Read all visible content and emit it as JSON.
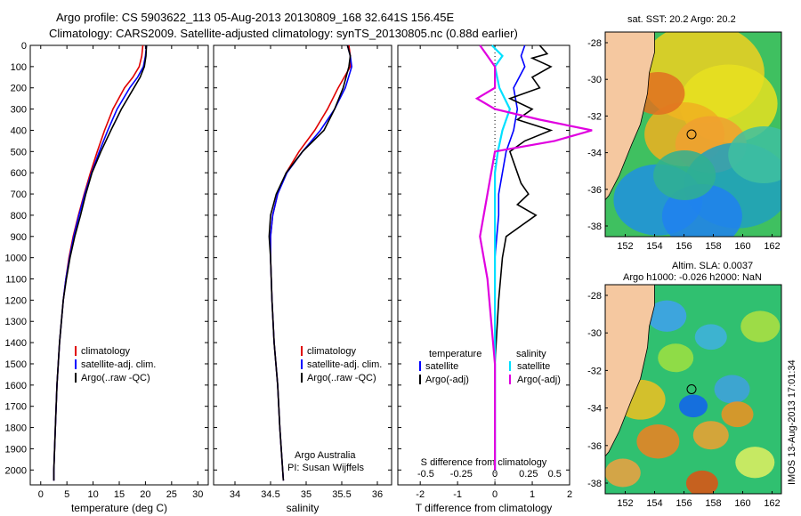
{
  "header": {
    "line1": "Argo profile: CS 5903622_113 05-Aug-2013 20130809_168 32.641S 156.45E",
    "line2": "Climatology: CARS2009. Satellite-adjusted climatology: synTS_20130805.nc (0.88d earlier)"
  },
  "map_top": {
    "title": "sat. SST: 20.2 Argo: 20.2"
  },
  "map_bottom": {
    "title1": "Altim. SLA: 0.0037",
    "title2": "Argo h1000: -0.026 h2000: NaN"
  },
  "side_label": "IMOS 13-Aug-2013 17:01:34",
  "annotations": {
    "argo_australia": "Argo Australia",
    "pi": "PI: Susan Wijffels"
  },
  "colors": {
    "climatology": "#e00000",
    "satellite": "#0000ff",
    "argo": "#000000",
    "sal_satellite": "#00e0ff",
    "sal_argo": "#e000e0",
    "land": "#f5c8a0"
  },
  "chart_data": [
    {
      "type": "line",
      "xlabel": "temperature (deg C)",
      "ylabel": "",
      "xlim": [
        -2,
        32
      ],
      "ylim": [
        2070,
        0
      ],
      "xticks": [
        0,
        5,
        10,
        15,
        20,
        25,
        30
      ],
      "yticks": [
        0,
        100,
        200,
        300,
        400,
        500,
        600,
        700,
        800,
        900,
        1000,
        1100,
        1200,
        1300,
        1400,
        1500,
        1600,
        1700,
        1800,
        1900,
        2000
      ],
      "legend": [
        "climatology",
        "satellite-adj. clim.",
        "Argo(..raw -QC)"
      ],
      "legend_position": "bottom-left",
      "series": [
        {
          "name": "climatology",
          "depth": [
            0,
            50,
            100,
            150,
            200,
            300,
            400,
            500,
            600,
            700,
            800,
            900,
            1000,
            1100,
            1200,
            1400,
            1600,
            1800,
            2000,
            2050
          ],
          "values": [
            19.5,
            19.3,
            18.8,
            17.6,
            16.0,
            13.8,
            12.2,
            10.8,
            9.5,
            8.3,
            7.2,
            6.2,
            5.4,
            4.8,
            4.3,
            3.6,
            3.1,
            2.8,
            2.5,
            2.5
          ]
        },
        {
          "name": "satellite-adj. clim.",
          "depth": [
            0,
            50,
            100,
            150,
            200,
            300,
            400,
            500,
            600,
            700,
            800,
            900,
            1000,
            1100,
            1200,
            1400,
            1600,
            1800,
            2000,
            2050
          ],
          "values": [
            20.2,
            20.0,
            19.6,
            18.5,
            17.0,
            14.6,
            12.8,
            11.2,
            9.7,
            8.4,
            7.3,
            6.3,
            5.5,
            4.8,
            4.3,
            3.6,
            3.1,
            2.8,
            2.5,
            2.5
          ]
        },
        {
          "name": "Argo(..raw -QC)",
          "depth": [
            0,
            50,
            100,
            150,
            200,
            300,
            400,
            500,
            600,
            700,
            800,
            900,
            1000,
            1100,
            1200,
            1400,
            1600,
            1800,
            2000,
            2050
          ],
          "values": [
            20.2,
            20.1,
            19.8,
            19.0,
            17.8,
            15.4,
            13.4,
            11.5,
            9.8,
            8.6,
            7.6,
            6.5,
            5.6,
            4.9,
            4.3,
            3.6,
            3.1,
            2.8,
            2.5,
            2.5
          ]
        }
      ]
    },
    {
      "type": "line",
      "xlabel": "salinity",
      "xlim": [
        33.7,
        36.2
      ],
      "ylim": [
        2070,
        0
      ],
      "xticks": [
        34,
        34.5,
        35,
        35.5,
        36
      ],
      "legend": [
        "climatology",
        "satellite-adj. clim.",
        "Argo(..raw -QC)"
      ],
      "legend_position": "bottom-right",
      "series": [
        {
          "name": "climatology",
          "depth": [
            0,
            50,
            100,
            200,
            300,
            400,
            500,
            600,
            700,
            800,
            900,
            1000,
            1200,
            1400,
            1600,
            1800,
            2000,
            2050
          ],
          "values": [
            35.6,
            35.62,
            35.62,
            35.45,
            35.3,
            35.12,
            34.9,
            34.72,
            34.6,
            34.53,
            34.5,
            34.5,
            34.52,
            34.55,
            34.6,
            34.63,
            34.67,
            34.68
          ]
        },
        {
          "name": "satellite-adj. clim.",
          "depth": [
            0,
            50,
            100,
            200,
            300,
            400,
            500,
            600,
            700,
            800,
            900,
            1000,
            1200,
            1400,
            1600,
            1800,
            2000,
            2050
          ],
          "values": [
            35.58,
            35.62,
            35.64,
            35.55,
            35.4,
            35.2,
            34.95,
            34.73,
            34.6,
            34.53,
            34.5,
            34.5,
            34.52,
            34.55,
            34.6,
            34.63,
            34.67,
            34.68
          ]
        },
        {
          "name": "Argo(..raw -QC)",
          "depth": [
            0,
            50,
            100,
            200,
            300,
            400,
            500,
            600,
            700,
            800,
            900,
            1000,
            1200,
            1400,
            1600,
            1800,
            2000,
            2050
          ],
          "values": [
            35.58,
            35.62,
            35.6,
            35.52,
            35.4,
            35.25,
            34.95,
            34.72,
            34.58,
            34.5,
            34.48,
            34.5,
            34.52,
            34.55,
            34.6,
            34.63,
            34.67,
            34.68
          ]
        }
      ]
    },
    {
      "type": "line",
      "xlabel": "T difference from climatology",
      "xlabel2": "S difference from climatology",
      "xlim": [
        -2.6,
        2.0
      ],
      "ylim": [
        2070,
        0
      ],
      "xticks": [
        -2,
        -1,
        0,
        1,
        2
      ],
      "xticks2_labels": [
        "-0.5",
        "-0.25",
        "0",
        "0.25",
        "0.5"
      ],
      "legend": [
        {
          "title": "temperature",
          "items": [
            "satellite",
            "Argo(-adj)"
          ]
        },
        {
          "title": "salinity",
          "items": [
            "satellite",
            "Argo(-adj)"
          ]
        }
      ],
      "legend_position": "bottom",
      "series": [
        {
          "name": "temperature satellite",
          "depth": [
            0,
            50,
            100,
            200,
            300,
            400,
            500,
            600,
            700,
            800,
            1000,
            1200,
            1500,
            2000
          ],
          "values": [
            0.8,
            0.7,
            0.8,
            0.5,
            0.6,
            0.5,
            0.3,
            0.2,
            0.1,
            0.1,
            0.0,
            0.0,
            0.0,
            0.0
          ]
        },
        {
          "name": "temperature Argo(-adj)",
          "depth": [
            0,
            40,
            60,
            100,
            150,
            200,
            250,
            300,
            350,
            400,
            450,
            500,
            600,
            650,
            700,
            750,
            800,
            900,
            1000,
            1200,
            1500,
            2000
          ],
          "values": [
            1.2,
            1.4,
            1.0,
            1.5,
            1.0,
            1.2,
            0.4,
            1.0,
            0.6,
            1.5,
            0.8,
            0.4,
            0.6,
            0.7,
            0.9,
            0.6,
            1.1,
            0.3,
            0.2,
            0.1,
            0.0,
            0.0
          ]
        },
        {
          "name": "salinity satellite",
          "depth": [
            0,
            50,
            100,
            200,
            300,
            400,
            500,
            600,
            800,
            1000,
            1500,
            2000
          ],
          "values": [
            -0.02,
            0.05,
            0.0,
            0.03,
            0.1,
            0.05,
            0.02,
            0.0,
            0.0,
            0.0,
            0.0,
            0.0
          ]
        },
        {
          "name": "salinity Argo(-adj)",
          "depth": [
            0,
            50,
            100,
            200,
            250,
            300,
            350,
            400,
            450,
            500,
            700,
            900,
            1100,
            1500,
            2000
          ],
          "values": [
            -0.1,
            -0.05,
            0.0,
            0.0,
            -0.12,
            0.0,
            0.3,
            0.65,
            0.4,
            0.0,
            -0.05,
            -0.1,
            -0.05,
            0.0,
            0.0
          ]
        }
      ]
    }
  ],
  "map_axes": {
    "xticks": [
      "152",
      "154",
      "156",
      "158",
      "160",
      "162"
    ],
    "yticks": [
      "-28",
      "-30",
      "-32",
      "-34",
      "-36",
      "-38"
    ]
  }
}
